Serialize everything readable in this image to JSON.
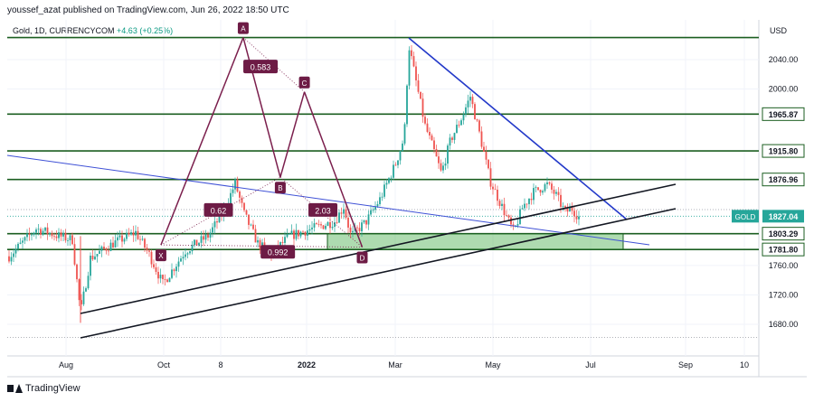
{
  "publisher_line": "youssef_azat published on TradingView.com, Jun 26, 2022 18:50 UTC",
  "symbol_line": {
    "name": "Gold, 1D, CURRENCYCOM",
    "change": "+4.63 (+0.25%)"
  },
  "footer_brand": "TradingView",
  "chart_data": {
    "type": "candlestick",
    "instrument": "GOLD",
    "timeframe": "1D",
    "currency_axis_label": "USD",
    "y_ticks": [
      2040,
      2000,
      1760,
      1720,
      1680
    ],
    "y_tick_labels": [
      "2040.00",
      "2000.00",
      "1760.00",
      "1720.00",
      "1680.00"
    ],
    "x_ticks": [
      "Aug",
      "Oct",
      "8",
      "2022",
      "Mar",
      "May",
      "Jul",
      "Sep",
      "10"
    ],
    "ylim": [
      1652,
      2075
    ],
    "current_price": {
      "label": "GOLD",
      "value": "1827.04"
    },
    "horizontal_levels": [
      {
        "value": 2070,
        "label": ""
      },
      {
        "value": 1965.87,
        "label": "1965.87"
      },
      {
        "value": 1915.8,
        "label": "1915.80"
      },
      {
        "value": 1876.96,
        "label": "1876.96"
      },
      {
        "value": 1803.29,
        "label": "1803.29"
      },
      {
        "value": 1781.8,
        "label": "1781.80"
      }
    ],
    "harmonic_pattern": {
      "points": [
        {
          "label": "X",
          "x": 0.2045,
          "y": 1788
        },
        {
          "label": "A",
          "x": 0.314,
          "y": 2070
        },
        {
          "label": "B",
          "x": 0.3633,
          "y": 1880
        },
        {
          "label": "C",
          "x": 0.3954,
          "y": 1996
        },
        {
          "label": "D",
          "x": 0.4723,
          "y": 1785
        }
      ],
      "ratios": [
        {
          "label": "0.583",
          "x": 0.337,
          "y": 2030
        },
        {
          "label": "0.62",
          "x": 0.281,
          "y": 1835
        },
        {
          "label": "2.03",
          "x": 0.42,
          "y": 1835
        },
        {
          "label": "0.992",
          "x": 0.36,
          "y": 1778
        }
      ]
    },
    "candles": "generated"
  }
}
